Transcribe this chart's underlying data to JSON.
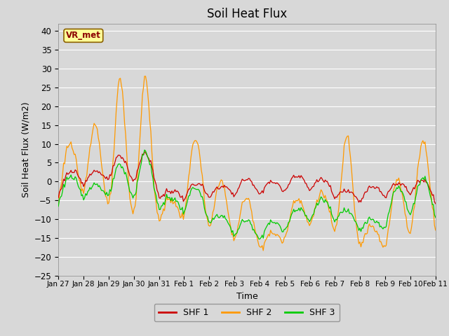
{
  "title": "Soil Heat Flux",
  "ylabel": "Soil Heat Flux (W/m2)",
  "xlabel": "Time",
  "annotation": "VR_met",
  "ylim": [
    -25,
    42
  ],
  "yticks": [
    -25,
    -20,
    -15,
    -10,
    -5,
    0,
    5,
    10,
    15,
    20,
    25,
    30,
    35,
    40
  ],
  "xtick_labels": [
    "Jan 27",
    "Jan 28",
    "Jan 29",
    "Jan 30",
    "Jan 31",
    "Feb 1",
    "Feb 2",
    "Feb 3",
    "Feb 4",
    "Feb 5",
    "Feb 6",
    "Feb 7",
    "Feb 8",
    "Feb 9",
    "Feb 10",
    "Feb 11"
  ],
  "shf1_color": "#cc0000",
  "shf2_color": "#ff9900",
  "shf3_color": "#00cc00",
  "background_color": "#d8d8d8",
  "plot_bg_color": "#d8d8d8",
  "legend_labels": [
    "SHF 1",
    "SHF 2",
    "SHF 3"
  ],
  "grid_color": "#ffffff",
  "title_fontsize": 12,
  "axis_fontsize": 9
}
